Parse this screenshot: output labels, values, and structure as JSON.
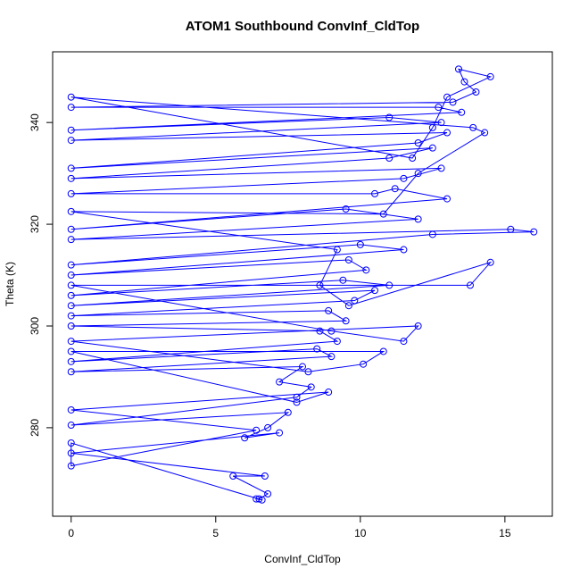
{
  "chart_data": {
    "type": "line",
    "title": "ATOM1 Southbound ConvInf_CldTop",
    "x_label": "ConvInf_CldTop",
    "y_label": "Theta (K)",
    "color": "#0000ff",
    "markers": "open-circle",
    "x": [
      6.5,
      6.8,
      5.6,
      6.7,
      0,
      7.2,
      6.0,
      6.8,
      7.5,
      0,
      7.8,
      8.3,
      7.2,
      8.0,
      0,
      9.0,
      8.5,
      0,
      9.2,
      8.6,
      0,
      9.5,
      8.9,
      0,
      9.8,
      10.5,
      0,
      11.0,
      9.4,
      0,
      10.2,
      9.6,
      0,
      11.5,
      10.0,
      0,
      12.5,
      16.0,
      15.2,
      0,
      12.0,
      9.5,
      0,
      13.0,
      11.2,
      10.5,
      0,
      11.5,
      12.8,
      0,
      11.0,
      12.5,
      0,
      12.0,
      13.0,
      0,
      12.8,
      11.0,
      0,
      13.5,
      12.7,
      0,
      13.2,
      14.0,
      13.6,
      13.4,
      14.5,
      13.0,
      12.5,
      11.8,
      0,
      13.9,
      14.3,
      12.0,
      10.8,
      0,
      9.2,
      8.6,
      9.6,
      14.5,
      13.8,
      0,
      9.0,
      11.5,
      12.0,
      0,
      8.2,
      10.1,
      10.8,
      0,
      7.8,
      8.9,
      0,
      6.4,
      0,
      0,
      6.6,
      6.4
    ],
    "y": [
      266,
      267,
      270.5,
      270.5,
      275,
      279,
      278,
      280,
      283,
      280.5,
      286,
      288,
      289,
      292,
      291,
      294,
      295.5,
      293,
      297,
      299,
      300,
      301,
      303,
      302,
      305,
      307,
      304,
      308,
      309,
      306,
      311,
      313,
      310,
      315,
      316,
      312,
      318,
      318.5,
      319,
      317,
      321,
      323,
      319,
      325,
      327,
      326,
      326,
      329,
      331,
      329,
      333,
      335,
      331,
      336,
      338,
      336.5,
      340,
      341,
      338.5,
      342,
      343,
      343,
      344,
      346,
      348,
      350.5,
      349,
      345,
      339,
      333,
      345,
      339,
      338,
      330,
      322,
      322.5,
      315,
      308,
      304,
      312.5,
      308,
      308,
      299,
      297,
      300,
      297,
      291,
      292.5,
      295,
      295,
      285,
      287,
      283.5,
      279.5,
      272.5,
      277,
      265.8,
      266
    ],
    "xlim": [
      -0.64,
      16.64
    ],
    "ylim": [
      262.6,
      353.9
    ],
    "xticks": [
      0,
      5,
      10,
      15
    ],
    "yticks": [
      280,
      300,
      320,
      340
    ]
  }
}
